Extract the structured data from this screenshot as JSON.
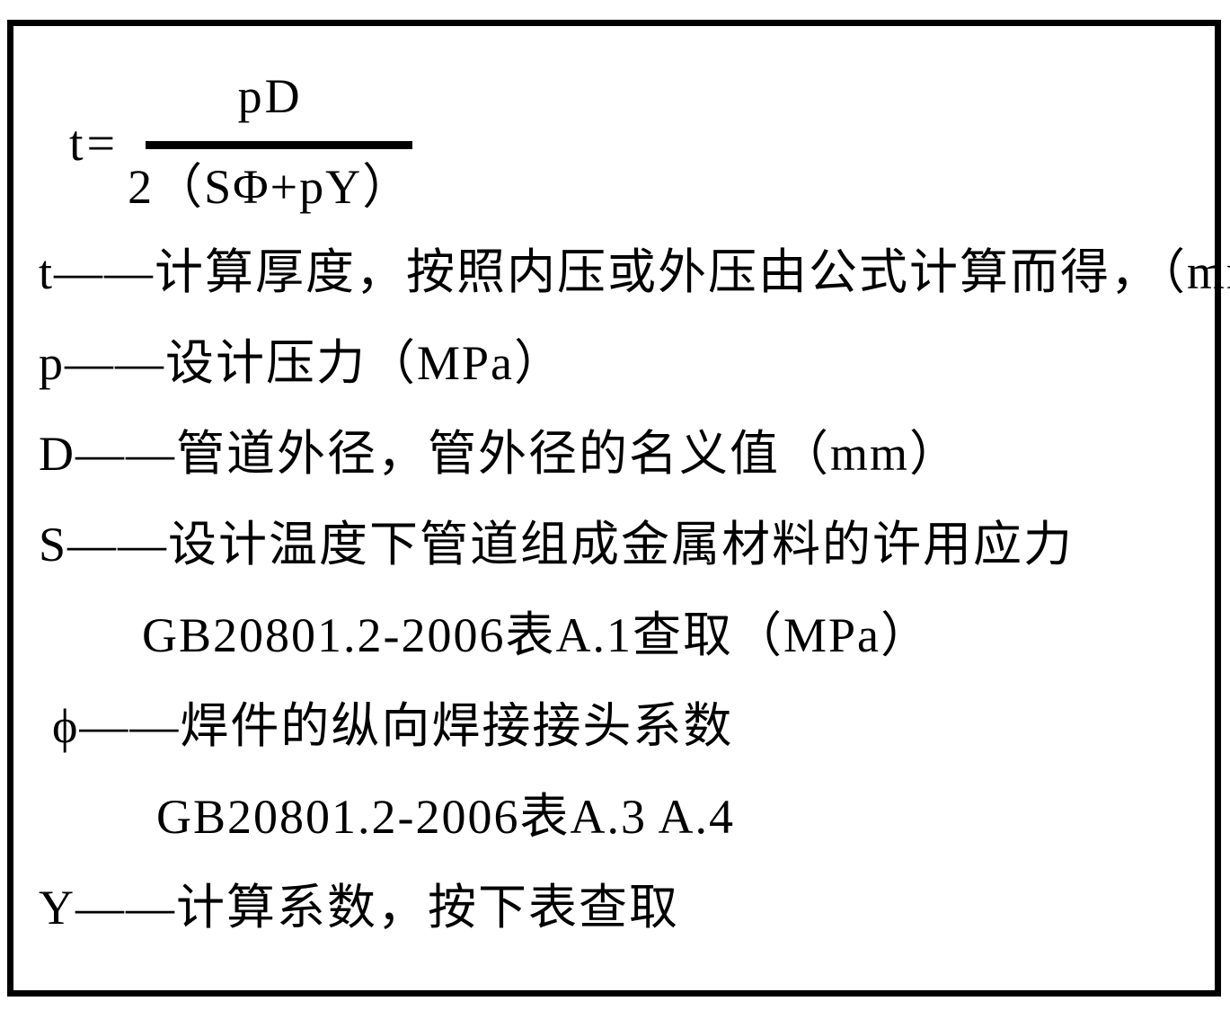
{
  "formula": {
    "lhs": "t=",
    "numerator": "pD",
    "denominator": "2（SΦ+pY）"
  },
  "definitions": [
    {
      "text": "t——计算厚度，按照内压或外压由公式计算而得，（mm）"
    },
    {
      "text": "p——设计压力（MPa）"
    },
    {
      "text": "D——管道外径，管外径的名义值（mm）"
    },
    {
      "text": "S——设计温度下管道组成金属材料的许用应力"
    },
    {
      "text": "GB20801.2-2006表A.1查取（MPa）"
    },
    {
      "text": "ϕ——焊件的纵向焊接接头系数"
    },
    {
      "text": "GB20801.2-2006表A.3 A.4"
    },
    {
      "text": "Y——计算系数，按下表查取"
    }
  ],
  "colors": {
    "text": "#000000",
    "background": "#ffffff",
    "border": "#000000"
  }
}
